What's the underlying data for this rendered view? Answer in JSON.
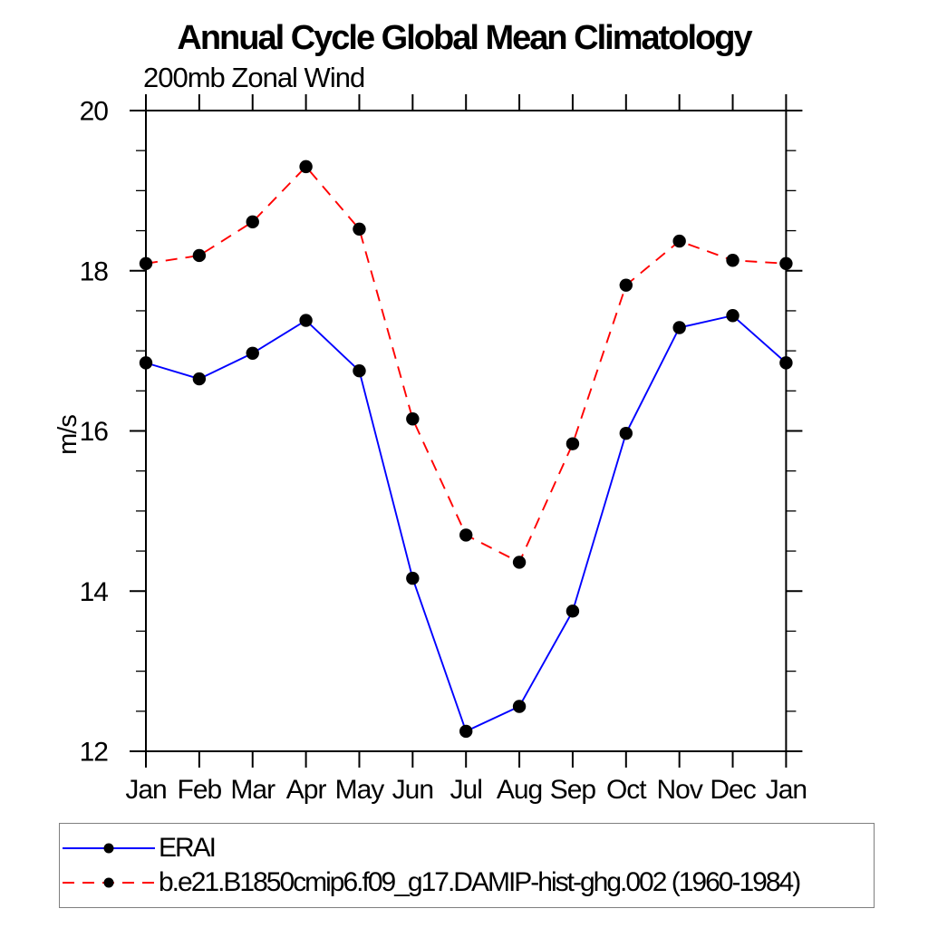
{
  "title": "Annual Cycle Global Mean Climatology",
  "subtitle": "200mb Zonal Wind",
  "ylabel": "m/s",
  "colors": {
    "background": "#ffffff",
    "axis": "#000000",
    "marker": "#000000",
    "erai_line": "#0000ff",
    "model_line": "#ff0000",
    "legend_border": "#7f7f7f"
  },
  "chart_data": {
    "type": "line",
    "title": "Annual Cycle Global Mean Climatology",
    "subtitle": "200mb Zonal Wind",
    "xlabel": "",
    "ylabel": "m/s",
    "categories": [
      "Jan",
      "Feb",
      "Mar",
      "Apr",
      "May",
      "Jun",
      "Jul",
      "Aug",
      "Sep",
      "Oct",
      "Nov",
      "Dec",
      "Jan"
    ],
    "ylim": [
      12,
      20
    ],
    "y_major_ticks": [
      12,
      14,
      16,
      18,
      20
    ],
    "y_minor_step": 0.5,
    "grid": false,
    "legend_position": "bottom-left-box",
    "series": [
      {
        "name": "ERAI",
        "color": "#0000ff",
        "line_style": "solid",
        "marker": "filled-circle",
        "marker_color": "#000000",
        "values": [
          16.85,
          16.65,
          16.97,
          17.38,
          16.75,
          14.16,
          12.25,
          12.56,
          13.75,
          15.97,
          17.29,
          17.44,
          16.85
        ]
      },
      {
        "name": "b.e21.B1850cmip6.f09_g17.DAMIP-hist-ghg.002 (1960-1984)",
        "color": "#ff0000",
        "line_style": "dashed",
        "marker": "filled-circle",
        "marker_color": "#000000",
        "values": [
          18.09,
          18.19,
          18.61,
          19.3,
          18.52,
          16.15,
          14.7,
          14.36,
          15.84,
          17.82,
          18.37,
          18.13,
          18.09
        ]
      }
    ]
  }
}
